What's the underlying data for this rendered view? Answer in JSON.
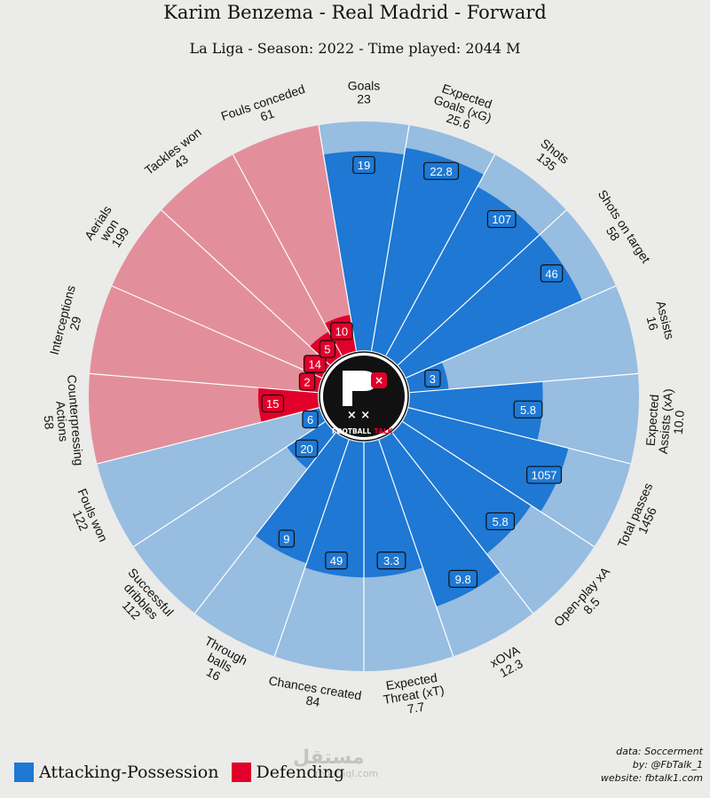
{
  "title": "Karim Benzema - Real Madrid - Forward",
  "subtitle": "La Liga - Season: 2022 - Time played: 2044 M",
  "legend": {
    "attacking_label": "Attacking-Possession",
    "defending_label": "Defending"
  },
  "credits": {
    "data": "data: Soccerment",
    "by": "by: @FbTalk_1",
    "website": "website: fbtalk1.com"
  },
  "logo_text": {
    "football": "FOOTBALL",
    "talk": "TALK"
  },
  "watermark": {
    "arabic": "مستقل",
    "latin": "mostaql.com"
  },
  "colors": {
    "background": "#ebebe9",
    "attack_fill": "#1e78d4",
    "attack_bg": "#97bde0",
    "defend_fill": "#e0002a",
    "defend_bg": "#e38f9b",
    "talk_accent": "#e0002a"
  },
  "chart_data": {
    "type": "radar",
    "slices": [
      {
        "name": [
          "Goals"
        ],
        "total": "23",
        "value": "19",
        "pct": 0.87,
        "group": "attack"
      },
      {
        "name": [
          "Expected",
          "Goals (xG)"
        ],
        "total": "25.6",
        "value": "22.8",
        "pct": 0.9,
        "group": "attack"
      },
      {
        "name": [
          "Shots"
        ],
        "total": "135",
        "value": "107",
        "pct": 0.84,
        "group": "attack"
      },
      {
        "name": [
          "Shots on target"
        ],
        "total": "58",
        "value": "46",
        "pct": 0.84,
        "group": "attack"
      },
      {
        "name": [
          "Assists"
        ],
        "total": "16",
        "value": "3",
        "pct": 0.17,
        "group": "attack"
      },
      {
        "name": [
          "Expected",
          "Assists (xA)"
        ],
        "total": "10.0",
        "value": "5.8",
        "pct": 0.58,
        "group": "attack"
      },
      {
        "name": [
          "Total passes"
        ],
        "total": "1456",
        "value": "1057",
        "pct": 0.72,
        "group": "attack"
      },
      {
        "name": [
          "Open-play xA"
        ],
        "total": "8.5",
        "value": "5.8",
        "pct": 0.67,
        "group": "attack"
      },
      {
        "name": [
          "xOVA"
        ],
        "total": "12.3",
        "value": "9.8",
        "pct": 0.77,
        "group": "attack"
      },
      {
        "name": [
          "Expected",
          "Threat (xT)"
        ],
        "total": "7.7",
        "value": "3.3",
        "pct": 0.59,
        "group": "attack"
      },
      {
        "name": [
          "Chances created"
        ],
        "total": "84",
        "value": "49",
        "pct": 0.59,
        "group": "attack"
      },
      {
        "name": [
          "Through",
          "balls"
        ],
        "total": "16",
        "value": "9",
        "pct": 0.57,
        "group": "attack"
      },
      {
        "name": [
          "Successful",
          "dribbles"
        ],
        "total": "112",
        "value": "20",
        "pct": 0.2,
        "group": "attack"
      },
      {
        "name": [
          "Fouls won"
        ],
        "total": "122",
        "value": "6",
        "pct": 0.06,
        "group": "attack"
      },
      {
        "name": [
          "Counterpressing",
          "Actions"
        ],
        "total": "58",
        "value": "15",
        "pct": 0.26,
        "group": "defend"
      },
      {
        "name": [
          "Interceptions"
        ],
        "total": "29",
        "value": "2",
        "pct": 0.07,
        "group": "defend"
      },
      {
        "name": [
          "Aerials",
          "won"
        ],
        "total": "199",
        "value": "14",
        "pct": 0.07,
        "group": "defend"
      },
      {
        "name": [
          "Tackles won"
        ],
        "total": "43",
        "value": "5",
        "pct": 0.12,
        "group": "defend"
      },
      {
        "name": [
          "Fouls conceded"
        ],
        "total": "61",
        "value": "10",
        "pct": 0.16,
        "group": "defend"
      }
    ]
  }
}
